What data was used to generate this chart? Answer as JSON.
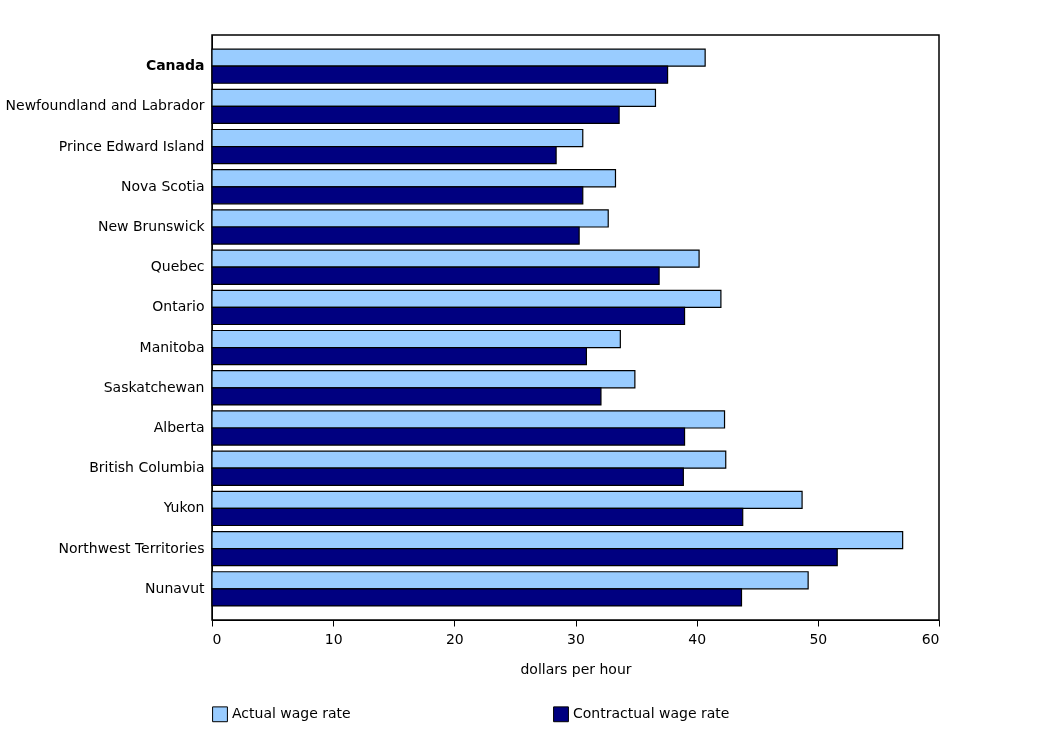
{
  "chart_data": {
    "type": "bar",
    "orientation": "horizontal",
    "xlabel": "dollars per hour",
    "categories": [
      "Canada",
      "Newfoundland and Labrador",
      "Prince Edward Island",
      "Nova Scotia",
      "New Brunswick",
      "Quebec",
      "Ontario",
      "Manitoba",
      "Saskatchewan",
      "Alberta",
      "British Columbia",
      "Yukon",
      "Northwest Territories",
      "Nunavut"
    ],
    "series": [
      {
        "name": "Actual wage rate",
        "color": "#99ccff",
        "values": [
          40.7,
          36.6,
          30.6,
          33.3,
          32.7,
          40.2,
          42.0,
          33.7,
          34.9,
          42.3,
          42.4,
          48.7,
          57.0,
          49.2
        ]
      },
      {
        "name": "Contractual wage rate",
        "color": "#000080",
        "values": [
          37.6,
          33.6,
          28.4,
          30.6,
          30.3,
          36.9,
          39.0,
          30.9,
          32.1,
          39.0,
          38.9,
          43.8,
          51.6,
          43.7
        ]
      }
    ],
    "xlim": [
      0,
      60
    ],
    "xticks": [
      0,
      10,
      20,
      30,
      40,
      50,
      60
    ],
    "grid": false,
    "legend": "bottom"
  }
}
